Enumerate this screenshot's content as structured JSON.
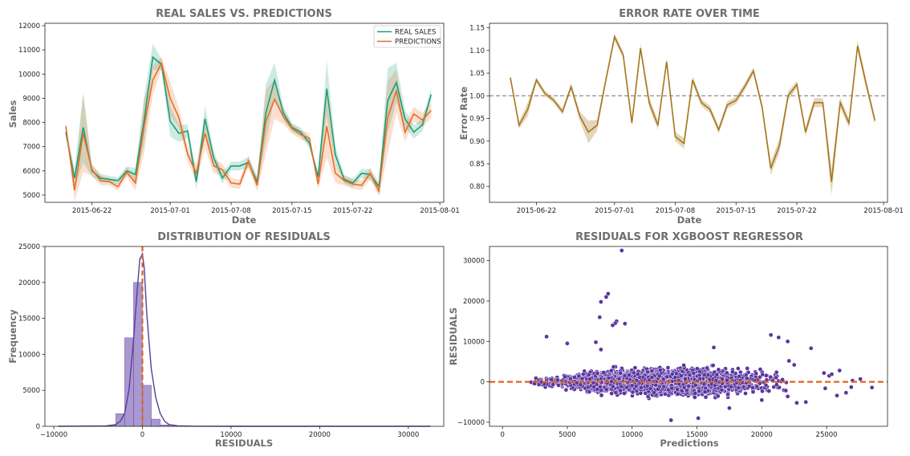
{
  "colors": {
    "real": "#1b9e77",
    "pred": "#e76d24",
    "error": "#a6761d",
    "hist": "#8c75c0",
    "hist_line": "#5b3c9b",
    "scatter": "#5a35a0",
    "median_line": "#e0641f",
    "ref_line": "#808080"
  },
  "chart_data": [
    {
      "type": "line",
      "title": "REAL SALES VS. PREDICTIONS",
      "xlabel": "Date",
      "ylabel": "Sales",
      "x_ticks": [
        "2015-06-22",
        "2015-07-01",
        "2015-07-08",
        "2015-07-15",
        "2015-07-22",
        "2015-08-01"
      ],
      "y_ticks": [
        5000,
        6000,
        7000,
        8000,
        9000,
        10000,
        11000,
        12000
      ],
      "ylim": [
        4700,
        12100
      ],
      "x_dates": [
        "2015-06-19",
        "2015-06-20",
        "2015-06-21",
        "2015-06-22",
        "2015-06-23",
        "2015-06-24",
        "2015-06-25",
        "2015-06-26",
        "2015-06-27",
        "2015-06-28",
        "2015-06-29",
        "2015-06-30",
        "2015-07-01",
        "2015-07-02",
        "2015-07-03",
        "2015-07-04",
        "2015-07-05",
        "2015-07-06",
        "2015-07-07",
        "2015-07-08",
        "2015-07-09",
        "2015-07-10",
        "2015-07-11",
        "2015-07-12",
        "2015-07-13",
        "2015-07-14",
        "2015-07-15",
        "2015-07-16",
        "2015-07-17",
        "2015-07-18",
        "2015-07-19",
        "2015-07-20",
        "2015-07-21",
        "2015-07-22",
        "2015-07-23",
        "2015-07-24",
        "2015-07-25",
        "2015-07-26",
        "2015-07-27",
        "2015-07-28",
        "2015-07-29",
        "2015-07-30",
        "2015-07-31"
      ],
      "legend": "top-right",
      "series": [
        {
          "name": "REAL SALES",
          "values": [
            7600,
            5700,
            7800,
            6000,
            5700,
            5650,
            5600,
            6000,
            5850,
            8100,
            10700,
            10400,
            8050,
            7550,
            7650,
            5550,
            8150,
            6550,
            5700,
            6200,
            6200,
            6350,
            5550,
            8400,
            9750,
            8400,
            7800,
            7600,
            7150,
            5750,
            9400,
            6650,
            5650,
            5500,
            5900,
            5850,
            5350,
            8900,
            9650,
            8150,
            7600,
            7900,
            9150
          ]
        },
        {
          "name": "PREDICTIONS",
          "values": [
            7850,
            5200,
            7550,
            6050,
            5600,
            5550,
            5350,
            5950,
            5500,
            7850,
            9750,
            10450,
            9000,
            8200,
            6700,
            5900,
            7550,
            6200,
            6050,
            5500,
            5450,
            6400,
            5400,
            8050,
            8950,
            8250,
            7750,
            7500,
            7350,
            5450,
            7850,
            5900,
            5600,
            5450,
            5400,
            5900,
            5150,
            8200,
            9300,
            7600,
            8350,
            8100,
            8500
          ]
        }
      ],
      "pred_band_halfwidth": [
        150,
        450,
        1600,
        250,
        200,
        150,
        150,
        200,
        300,
        1100,
        600,
        250,
        700,
        400,
        300,
        350,
        600,
        300,
        250,
        200,
        200,
        250,
        250,
        1300,
        800,
        300,
        200,
        200,
        200,
        200,
        1300,
        400,
        200,
        200,
        200,
        250,
        200,
        1500,
        900,
        400,
        300,
        300,
        300
      ]
    },
    {
      "type": "line",
      "title": "ERROR RATE OVER TIME",
      "xlabel": "Date",
      "ylabel": "Error Rate",
      "x_ticks": [
        "2015-06-22",
        "2015-07-01",
        "2015-07-08",
        "2015-07-15",
        "2015-07-22",
        "2015-08-01"
      ],
      "y_ticks": [
        0.8,
        0.85,
        0.9,
        0.95,
        1.0,
        1.05,
        1.1,
        1.15
      ],
      "y_tick_labels": [
        "0.80",
        "0.85",
        "0.90",
        "0.95",
        "1.00",
        "1.05",
        "1.10",
        "1.15"
      ],
      "ylim": [
        0.765,
        1.16
      ],
      "reference_line": 1.0,
      "series": [
        {
          "name": "",
          "values": [
            1.04,
            0.935,
            0.97,
            1.035,
            1.005,
            0.99,
            0.965,
            1.02,
            0.955,
            0.92,
            0.935,
            1.035,
            1.13,
            1.09,
            0.94,
            1.105,
            0.985,
            0.935,
            1.075,
            0.91,
            0.895,
            1.035,
            0.985,
            0.97,
            0.925,
            0.98,
            0.99,
            1.02,
            1.055,
            0.975,
            0.84,
            0.89,
            1.0,
            1.025,
            0.92,
            0.985,
            0.985,
            0.81,
            0.985,
            0.94,
            1.11,
            1.025,
            0.945
          ]
        }
      ],
      "band_halfwidth": [
        0.004,
        0.008,
        0.015,
        0.006,
        0.006,
        0.006,
        0.007,
        0.007,
        0.01,
        0.025,
        0.012,
        0.008,
        0.008,
        0.007,
        0.008,
        0.01,
        0.012,
        0.01,
        0.008,
        0.01,
        0.012,
        0.008,
        0.008,
        0.008,
        0.008,
        0.008,
        0.008,
        0.008,
        0.008,
        0.008,
        0.015,
        0.015,
        0.01,
        0.008,
        0.01,
        0.01,
        0.01,
        0.03,
        0.012,
        0.01,
        0.012,
        0.01,
        0.008
      ]
    },
    {
      "type": "bar",
      "title": "DISTRIBUTION OF RESIDUALS",
      "xlabel": "RESIDUALS",
      "ylabel": "Frequency",
      "x_ticks": [
        -10000,
        0,
        10000,
        20000,
        30000
      ],
      "y_ticks": [
        0,
        5000,
        10000,
        15000,
        20000,
        25000
      ],
      "xlim": [
        -11000,
        34000
      ],
      "ylim": [
        0,
        25000
      ],
      "bin_width": 1000,
      "bins": [
        {
          "x": -3000,
          "count": 150
        },
        {
          "x": -2000,
          "count": 1750
        },
        {
          "x": -1000,
          "count": 12300
        },
        {
          "x": 0,
          "count": 20000
        },
        {
          "x": 1000,
          "count": 5700
        },
        {
          "x": 2000,
          "count": 1000
        },
        {
          "x": 3000,
          "count": 200
        },
        {
          "x": 4000,
          "count": 60
        }
      ],
      "kde_x": [
        -9500,
        -4000,
        -3000,
        -2500,
        -2000,
        -1500,
        -1000,
        -600,
        -300,
        0,
        200,
        500,
        1000,
        1500,
        2000,
        2500,
        3000,
        4000,
        6000,
        10000,
        20000,
        32500
      ],
      "kde_y": [
        0,
        60,
        250,
        700,
        1800,
        5200,
        12000,
        18800,
        23200,
        24000,
        22000,
        15500,
        8000,
        4000,
        1800,
        700,
        250,
        60,
        15,
        0,
        0,
        0
      ],
      "vertical_line": 0
    },
    {
      "type": "scatter",
      "title": "RESIDUALS FOR XGBOOST REGRESSOR",
      "xlabel": "Predictions",
      "ylabel": "RESIDUALS",
      "x_ticks": [
        0,
        5000,
        10000,
        15000,
        20000,
        25000
      ],
      "y_ticks": [
        -10000,
        0,
        10000,
        20000,
        30000
      ],
      "xlim": [
        -1000,
        29700
      ],
      "ylim": [
        -11000,
        33500
      ],
      "reference_line": 0,
      "points": [
        [
          9200,
          32500
        ],
        [
          8150,
          21800
        ],
        [
          8000,
          21000
        ],
        [
          7600,
          19800
        ],
        [
          8800,
          15000
        ],
        [
          8700,
          14500
        ],
        [
          9450,
          14400
        ],
        [
          8500,
          14000
        ],
        [
          7500,
          16000
        ],
        [
          3400,
          11200
        ],
        [
          5000,
          9500
        ],
        [
          7200,
          9800
        ],
        [
          7600,
          8000
        ],
        [
          20700,
          11600
        ],
        [
          21300,
          11000
        ],
        [
          22000,
          10000
        ],
        [
          23800,
          8300
        ],
        [
          16300,
          8500
        ],
        [
          13000,
          -9500
        ],
        [
          15100,
          -9000
        ],
        [
          17500,
          -6500
        ],
        [
          20000,
          -4500
        ],
        [
          22700,
          -5200
        ],
        [
          23400,
          -5000
        ],
        [
          25800,
          -3400
        ],
        [
          26500,
          -2700
        ],
        [
          26000,
          2800
        ],
        [
          27600,
          700
        ],
        [
          28500,
          -1400
        ],
        [
          24800,
          2200
        ],
        [
          25200,
          1500
        ],
        [
          26900,
          -1300
        ],
        [
          25400,
          1900
        ],
        [
          24900,
          -1600
        ],
        [
          27000,
          300
        ],
        [
          22100,
          5200
        ],
        [
          22500,
          4200
        ],
        [
          22000,
          -3600
        ]
      ],
      "cloud": {
        "x_min": 800,
        "x_max": 22000,
        "envelope": [
          [
            1000,
            500
          ],
          [
            3000,
            1500
          ],
          [
            5000,
            2300
          ],
          [
            8000,
            3400
          ],
          [
            12000,
            4000
          ],
          [
            16000,
            4300
          ],
          [
            19000,
            3700
          ],
          [
            22000,
            3100
          ]
        ]
      }
    }
  ]
}
